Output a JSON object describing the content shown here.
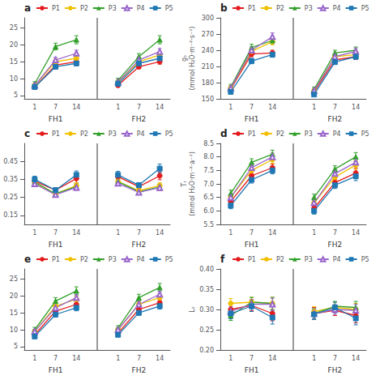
{
  "chart_data": [
    {
      "type": "line",
      "title": "a",
      "categories": [
        "1",
        "7",
        "14",
        null,
        "1",
        "7",
        "14"
      ],
      "annotations": [
        "FH1",
        "FH2"
      ],
      "ylim": [
        4,
        28
      ],
      "yticks": [
        5,
        10,
        15,
        20,
        25
      ],
      "grid": false,
      "legend": "upper left",
      "series": [
        {
          "name": "P1",
          "color": "#e41a1c",
          "marker": "circle",
          "values": [
            7.5,
            14.0,
            15.0,
            null,
            8.0,
            13.5,
            15.0
          ],
          "errors": [
            0.5,
            0.7,
            0.7,
            null,
            0.5,
            0.6,
            0.7
          ]
        },
        {
          "name": "P2",
          "color": "#f0c000",
          "marker": "circle",
          "values": [
            8.0,
            15.0,
            16.0,
            null,
            9.0,
            15.0,
            17.0
          ],
          "errors": [
            0.5,
            0.8,
            0.8,
            null,
            0.5,
            0.8,
            0.9
          ]
        },
        {
          "name": "P3",
          "color": "#33a02c",
          "marker": "triangle",
          "values": [
            8.5,
            19.5,
            21.5,
            null,
            9.5,
            16.5,
            21.5
          ],
          "errors": [
            0.6,
            1.0,
            1.2,
            null,
            0.6,
            0.9,
            1.2
          ]
        },
        {
          "name": "P4",
          "color": "#9966cc",
          "marker": "open-triangle",
          "values": [
            8.0,
            15.5,
            17.5,
            null,
            9.0,
            15.5,
            18.0
          ],
          "errors": [
            0.5,
            0.8,
            0.9,
            null,
            0.5,
            0.8,
            0.9
          ]
        },
        {
          "name": "P5",
          "color": "#1f78b4",
          "marker": "square",
          "values": [
            7.5,
            13.5,
            14.5,
            null,
            8.5,
            14.5,
            16.0
          ],
          "errors": [
            0.5,
            0.7,
            0.7,
            null,
            0.5,
            0.7,
            0.8
          ]
        }
      ]
    },
    {
      "type": "line",
      "title": "b",
      "y_label": "gₛ\n(mmol H₂O·m⁻²·s⁻¹)",
      "categories": [
        "1",
        "7",
        "14",
        null,
        "1",
        "7",
        "14"
      ],
      "annotations": [
        "FH1",
        "FH2"
      ],
      "ylim": [
        150,
        300
      ],
      "yticks": [
        150,
        180,
        210,
        240,
        270,
        300
      ],
      "grid": false,
      "legend": "upper left",
      "series": [
        {
          "name": "P1",
          "color": "#e41a1c",
          "marker": "circle",
          "values": [
            168,
            233,
            235,
            null,
            163,
            222,
            228
          ],
          "errors": [
            4,
            5,
            5,
            null,
            4,
            5,
            5
          ]
        },
        {
          "name": "P2",
          "color": "#f0c000",
          "marker": "circle",
          "values": [
            170,
            238,
            256,
            null,
            165,
            228,
            232
          ],
          "errors": [
            4,
            5,
            6,
            null,
            4,
            5,
            5
          ]
        },
        {
          "name": "P3",
          "color": "#33a02c",
          "marker": "triangle",
          "values": [
            172,
            245,
            258,
            null,
            168,
            235,
            240
          ],
          "errors": [
            5,
            6,
            6,
            null,
            4,
            5,
            6
          ]
        },
        {
          "name": "P4",
          "color": "#9966cc",
          "marker": "open-triangle",
          "values": [
            170,
            240,
            265,
            null,
            165,
            228,
            238
          ],
          "errors": [
            4,
            6,
            7,
            null,
            4,
            5,
            6
          ]
        },
        {
          "name": "P5",
          "color": "#1f78b4",
          "marker": "square",
          "values": [
            163,
            220,
            232,
            null,
            158,
            218,
            228
          ],
          "errors": [
            4,
            5,
            5,
            null,
            3,
            4,
            5
          ]
        }
      ]
    },
    {
      "type": "line",
      "title": "c",
      "categories": [
        "1",
        "7",
        "14",
        null,
        "1",
        "7",
        "14"
      ],
      "annotations": [
        "FH1",
        "FH2"
      ],
      "ylim": [
        0.1,
        0.55
      ],
      "yticks": [
        0.15,
        0.25,
        0.35,
        0.45
      ],
      "grid": false,
      "legend": "upper left",
      "series": [
        {
          "name": "P1",
          "color": "#e41a1c",
          "marker": "circle",
          "values": [
            0.34,
            0.29,
            0.355,
            null,
            0.365,
            0.31,
            0.37
          ],
          "errors": [
            0.018,
            0.014,
            0.025,
            null,
            0.018,
            0.014,
            0.022
          ]
        },
        {
          "name": "P2",
          "color": "#f0c000",
          "marker": "circle",
          "values": [
            0.33,
            0.27,
            0.315,
            null,
            0.338,
            0.288,
            0.315
          ],
          "errors": [
            0.014,
            0.011,
            0.016,
            null,
            0.014,
            0.011,
            0.016
          ]
        },
        {
          "name": "P3",
          "color": "#33a02c",
          "marker": "triangle",
          "values": [
            0.335,
            0.27,
            0.31,
            null,
            0.338,
            0.282,
            0.308
          ],
          "errors": [
            0.014,
            0.011,
            0.016,
            null,
            0.014,
            0.011,
            0.016
          ]
        },
        {
          "name": "P4",
          "color": "#9966cc",
          "marker": "open-triangle",
          "values": [
            0.325,
            0.265,
            0.305,
            null,
            0.328,
            0.278,
            0.304
          ],
          "errors": [
            0.014,
            0.011,
            0.016,
            null,
            0.014,
            0.011,
            0.016
          ]
        },
        {
          "name": "P5",
          "color": "#1f78b4",
          "marker": "square",
          "values": [
            0.35,
            0.29,
            0.375,
            null,
            0.375,
            0.318,
            0.41
          ],
          "errors": [
            0.018,
            0.014,
            0.022,
            null,
            0.02,
            0.014,
            0.025
          ]
        }
      ]
    },
    {
      "type": "line",
      "title": "d",
      "y_label": "Tᵣ\n(mmol H₂O·m⁻²·a⁻¹)",
      "categories": [
        "1",
        "7",
        "14",
        null,
        "1",
        "7",
        "14"
      ],
      "annotations": [
        "FH1",
        "FH2"
      ],
      "ylim": [
        5.5,
        8.5
      ],
      "yticks": [
        5.5,
        {
          "value": 6.0,
          "label": "6.0"
        },
        6.5,
        {
          "value": 7.0,
          "label": "7.0"
        },
        7.5,
        {
          "value": 8.0,
          "label": "8.0"
        },
        8.5
      ],
      "grid": false,
      "legend": "upper left",
      "series": [
        {
          "name": "P1",
          "color": "#e41a1c",
          "marker": "circle",
          "values": [
            6.35,
            7.3,
            7.6,
            null,
            6.1,
            7.05,
            7.4
          ],
          "errors": [
            0.12,
            0.12,
            0.14,
            null,
            0.12,
            0.12,
            0.18
          ]
        },
        {
          "name": "P2",
          "color": "#f0c000",
          "marker": "circle",
          "values": [
            6.5,
            7.5,
            7.9,
            null,
            6.3,
            7.25,
            7.7
          ],
          "errors": [
            0.12,
            0.12,
            0.14,
            null,
            0.12,
            0.12,
            0.16
          ]
        },
        {
          "name": "P3",
          "color": "#33a02c",
          "marker": "triangle",
          "values": [
            6.65,
            7.8,
            8.1,
            null,
            6.5,
            7.55,
            8.0
          ],
          "errors": [
            0.12,
            0.13,
            0.15,
            null,
            0.12,
            0.12,
            0.16
          ]
        },
        {
          "name": "P4",
          "color": "#9966cc",
          "marker": "open-triangle",
          "values": [
            6.5,
            7.6,
            8.0,
            null,
            6.3,
            7.38,
            7.8
          ],
          "errors": [
            0.12,
            0.12,
            0.14,
            null,
            0.12,
            0.12,
            0.16
          ]
        },
        {
          "name": "P5",
          "color": "#1f78b4",
          "marker": "square",
          "values": [
            6.2,
            7.15,
            7.5,
            null,
            6.0,
            6.95,
            7.28
          ],
          "errors": [
            0.12,
            0.12,
            0.13,
            null,
            0.12,
            0.12,
            0.16
          ]
        }
      ]
    },
    {
      "type": "line",
      "title": "e",
      "categories": [
        "1",
        "7",
        "14",
        null,
        "1",
        "7",
        "14"
      ],
      "annotations": [
        "FH1",
        "FH2"
      ],
      "ylim": [
        4,
        28
      ],
      "yticks": [
        5,
        10,
        15,
        20,
        25
      ],
      "grid": false,
      "legend": "upper left",
      "series": [
        {
          "name": "P1",
          "color": "#e41a1c",
          "marker": "circle",
          "values": [
            8.5,
            15.5,
            17.5,
            null,
            9.0,
            16.0,
            18.0
          ],
          "errors": [
            0.6,
            0.8,
            0.9,
            null,
            0.6,
            0.8,
            0.9
          ]
        },
        {
          "name": "P2",
          "color": "#f0c000",
          "marker": "circle",
          "values": [
            9.5,
            17.0,
            19.0,
            null,
            10.0,
            17.5,
            19.5
          ],
          "errors": [
            0.6,
            0.9,
            1.0,
            null,
            0.6,
            0.9,
            1.0
          ]
        },
        {
          "name": "P3",
          "color": "#33a02c",
          "marker": "triangle",
          "values": [
            10.0,
            18.5,
            21.5,
            null,
            10.5,
            19.5,
            22.5
          ],
          "errors": [
            0.7,
            1.0,
            1.2,
            null,
            0.7,
            1.0,
            1.2
          ]
        },
        {
          "name": "P4",
          "color": "#9966cc",
          "marker": "open-triangle",
          "values": [
            9.5,
            16.5,
            19.5,
            null,
            10.0,
            17.5,
            20.5
          ],
          "errors": [
            0.6,
            0.9,
            1.0,
            null,
            0.6,
            0.9,
            1.0
          ]
        },
        {
          "name": "P5",
          "color": "#1f78b4",
          "marker": "square",
          "values": [
            8.0,
            14.5,
            16.5,
            null,
            8.5,
            15.0,
            17.0
          ],
          "errors": [
            0.6,
            0.7,
            0.9,
            null,
            0.6,
            0.7,
            0.9
          ]
        }
      ]
    },
    {
      "type": "line",
      "title": "f",
      "y_label": "Lₛ",
      "categories": [
        "1",
        "7",
        "14",
        null,
        "1",
        "7",
        "14"
      ],
      "annotations": [
        "FH1",
        "FH2"
      ],
      "ylim": [
        0.2,
        0.4
      ],
      "yticks": [
        {
          "value": 0.2,
          "label": "0.20"
        },
        0.25,
        {
          "value": 0.3,
          "label": "0.30"
        },
        0.35,
        {
          "value": 0.4,
          "label": "0.40"
        }
      ],
      "grid": false,
      "legend": "upper left",
      "series": [
        {
          "name": "P1",
          "color": "#e41a1c",
          "marker": "circle",
          "values": [
            0.3,
            0.31,
            0.29,
            null,
            0.29,
            0.298,
            0.285
          ],
          "errors": [
            0.015,
            0.013,
            0.018,
            null,
            0.015,
            0.013,
            0.018
          ]
        },
        {
          "name": "P2",
          "color": "#f0c000",
          "marker": "circle",
          "values": [
            0.315,
            0.318,
            0.315,
            null,
            0.295,
            0.305,
            0.3
          ],
          "errors": [
            0.012,
            0.012,
            0.015,
            null,
            0.012,
            0.012,
            0.015
          ]
        },
        {
          "name": "P3",
          "color": "#33a02c",
          "marker": "triangle",
          "values": [
            0.285,
            0.318,
            0.315,
            null,
            0.29,
            0.308,
            0.305
          ],
          "errors": [
            0.012,
            0.012,
            0.015,
            null,
            0.012,
            0.012,
            0.015
          ]
        },
        {
          "name": "P4",
          "color": "#9966cc",
          "marker": "open-triangle",
          "values": [
            0.295,
            0.313,
            0.313,
            null,
            0.29,
            0.3,
            0.298
          ],
          "errors": [
            0.012,
            0.012,
            0.015,
            null,
            0.012,
            0.012,
            0.015
          ]
        },
        {
          "name": "P5",
          "color": "#1f78b4",
          "marker": "square",
          "values": [
            0.29,
            0.308,
            0.28,
            null,
            0.288,
            0.305,
            0.278
          ],
          "errors": [
            0.013,
            0.013,
            0.016,
            null,
            0.013,
            0.013,
            0.016
          ]
        }
      ]
    }
  ]
}
